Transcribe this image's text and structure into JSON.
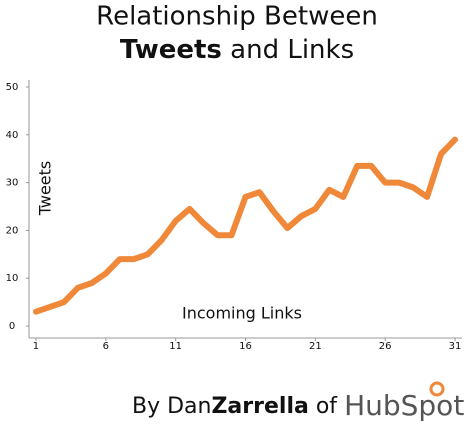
{
  "chart_data": {
    "type": "line",
    "title": "Relationship Between",
    "title_bold": "Tweets",
    "title_rest": "and Links",
    "y_label": "Tweets",
    "x_label": "Incoming Links",
    "credit": {
      "by": "By Dan",
      "bold": "Zarrella",
      "of": "of",
      "brand": "HubSpot"
    },
    "x": [
      1,
      2,
      3,
      4,
      5,
      6,
      7,
      8,
      9,
      10,
      11,
      12,
      13,
      14,
      15,
      16,
      17,
      18,
      19,
      20,
      21,
      22,
      23,
      24,
      25,
      26,
      27,
      28,
      29,
      30,
      31
    ],
    "series": [
      {
        "name": "Tweets",
        "color": "#f0883a",
        "values": [
          3,
          4,
          5,
          8,
          9,
          11,
          14,
          14,
          15,
          18,
          22,
          24.5,
          21.5,
          19,
          19,
          27,
          28,
          24,
          20.5,
          23,
          24.5,
          28.5,
          27,
          33.5,
          33.5,
          30,
          30,
          29,
          27,
          36,
          39
        ]
      }
    ],
    "xlim": [
      0.5,
      31.5
    ],
    "xticks": [
      1,
      6,
      11,
      16,
      21,
      26,
      31
    ],
    "ylim": [
      -2.5,
      50
    ],
    "yticks": [
      0,
      10,
      20,
      30,
      40,
      50
    ]
  }
}
